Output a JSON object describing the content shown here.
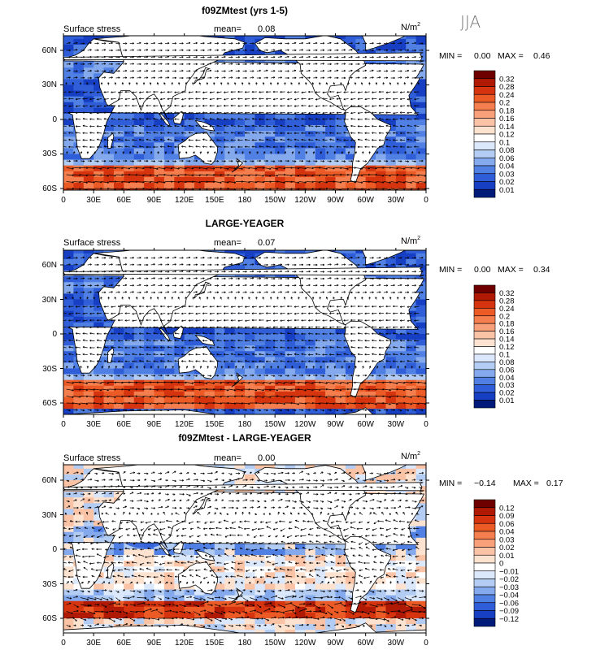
{
  "season_label": "JJA",
  "panels": [
    {
      "title": "f09ZMtest (yrs 1-5)",
      "variable": "Surface stress",
      "mean_label": "mean=",
      "mean_value": "0.08",
      "units_base": "N/m",
      "units_exp": "2",
      "min_label": "MIN =",
      "min_value": "0.00",
      "max_label": "MAX =",
      "max_value": "0.46",
      "kind": "abs",
      "colorbar": {
        "labels": [
          "0.32",
          "0.28",
          "0.24",
          "0.2",
          "0.18",
          "0.16",
          "0.14",
          "0.12",
          "0.1",
          "0.08",
          "0.06",
          "0.04",
          "0.03",
          "0.02",
          "0.01"
        ],
        "colors": [
          "#6e0000",
          "#b01a05",
          "#d5340f",
          "#ec5a26",
          "#f47e4e",
          "#f8a07a",
          "#fbc3a5",
          "#fde2d0",
          "#ffffff",
          "#dbe7fb",
          "#b2ccf3",
          "#84a9ec",
          "#5080e3",
          "#2f5ed8",
          "#163fc4",
          "#001a7a"
        ]
      }
    },
    {
      "title": "LARGE-YEAGER",
      "variable": "Surface stress",
      "mean_label": "mean=",
      "mean_value": "0.07",
      "units_base": "N/m",
      "units_exp": "2",
      "min_label": "MIN =",
      "min_value": "0.00",
      "max_label": "MAX =",
      "max_value": "0.34",
      "kind": "abs",
      "colorbar": {
        "labels": [
          "0.32",
          "0.28",
          "0.24",
          "0.2",
          "0.18",
          "0.16",
          "0.14",
          "0.12",
          "0.1",
          "0.08",
          "0.06",
          "0.04",
          "0.03",
          "0.02",
          "0.01"
        ],
        "colors": [
          "#6e0000",
          "#b01a05",
          "#d5340f",
          "#ec5a26",
          "#f47e4e",
          "#f8a07a",
          "#fbc3a5",
          "#fde2d0",
          "#ffffff",
          "#dbe7fb",
          "#b2ccf3",
          "#84a9ec",
          "#5080e3",
          "#2f5ed8",
          "#163fc4",
          "#001a7a"
        ]
      }
    },
    {
      "title": "f09ZMtest - LARGE-YEAGER",
      "variable": "Surface stress",
      "mean_label": "mean=",
      "mean_value": "0.00",
      "units_base": "N/m",
      "units_exp": "2",
      "min_label": "MIN =",
      "min_value": "−0.14",
      "max_label": "MAX =",
      "max_value": "0.17",
      "kind": "diff",
      "colorbar": {
        "labels": [
          "0.12",
          "0.09",
          "0.06",
          "0.04",
          "0.03",
          "0.02",
          "0.01",
          "0",
          "−0.01",
          "−0.02",
          "−0.03",
          "−0.04",
          "−0.06",
          "−0.09",
          "−0.12"
        ],
        "colors": [
          "#6e0000",
          "#b01a05",
          "#d5340f",
          "#ec5a26",
          "#f47e4e",
          "#f8a07a",
          "#fbc3a5",
          "#fde2d0",
          "#ffffff",
          "#dbe7fb",
          "#b2ccf3",
          "#84a9ec",
          "#5080e3",
          "#2f5ed8",
          "#163fc4",
          "#001a7a"
        ]
      }
    }
  ],
  "lat_ticks": [
    "60N",
    "30N",
    "0",
    "30S",
    "60S"
  ],
  "lon_ticks": [
    "0",
    "30E",
    "60E",
    "90E",
    "120E",
    "150E",
    "180",
    "150W",
    "120W",
    "90W",
    "60W",
    "30W",
    "0"
  ]
}
